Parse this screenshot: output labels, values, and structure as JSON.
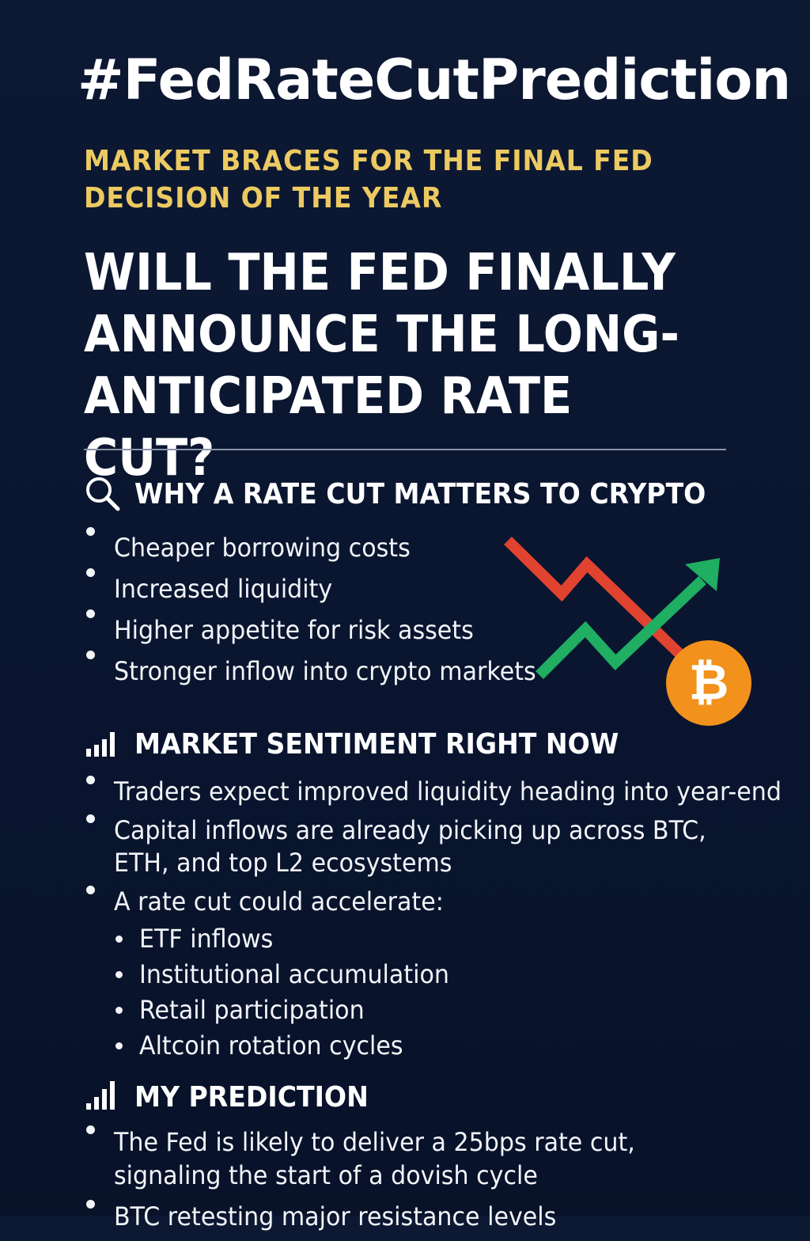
{
  "hashtag": "#FedRateCutPrediction",
  "subtitle": "MARKET BRACES FOR THE FINAL FED DECISION OF THE YEAR",
  "question": "WILL THE FED FINALLY ANNOUNCE THE LONG-ANTICIPATED RATE CUT?",
  "sections": {
    "why": {
      "icon": "search-icon",
      "heading": "WHY A RATE CUT MATTERS TO CRYPTO",
      "items": [
        "Cheaper borrowing costs",
        "Increased liquidity",
        "Higher appetite for risk assets",
        "Stronger inflow into crypto markets"
      ]
    },
    "sentiment": {
      "icon": "bar-chart-icon",
      "heading": "MARKET SENTIMENT RIGHT NOW",
      "items": [
        "Traders expect improved liquidity heading into year-end",
        "Capital inflows are already picking up across BTC, ETH, and top L2 ecosystems",
        "A rate cut could accelerate:"
      ],
      "subitems": [
        "ETF inflows",
        "Institutional accumulation",
        "Retail participation",
        "Altcoin rotation cycles"
      ]
    },
    "prediction": {
      "icon": "bar-chart-icon",
      "heading": "MY PREDICTION",
      "items": [
        "The Fed is likely to deliver a 25bps rate cut, signaling the start of a dovish cycle",
        "BTC retesting major resistance levels"
      ]
    }
  },
  "graphic": {
    "bitcoin_symbol": "₿",
    "colors": {
      "down_arrow": "#e0432f",
      "up_arrow": "#1fae62",
      "bitcoin": "#f2911c",
      "accent": "#ecca62",
      "background": "#0b1630"
    }
  }
}
